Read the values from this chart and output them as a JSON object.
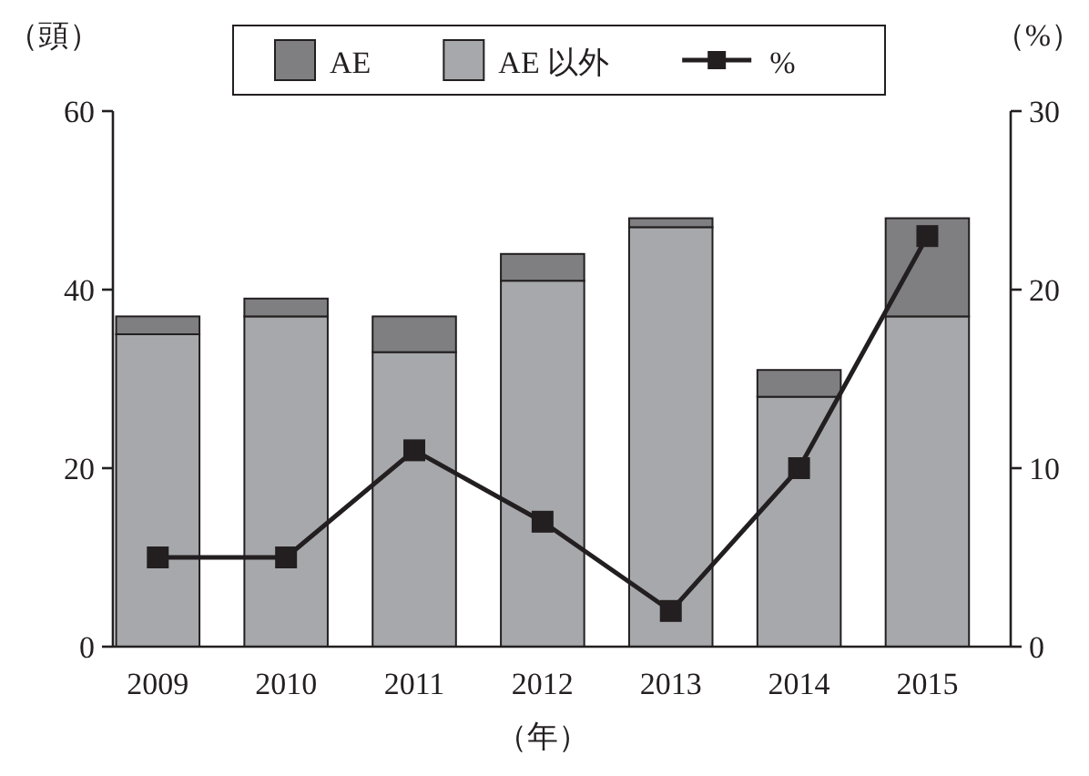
{
  "chart_data": {
    "type": "bar",
    "stacked": true,
    "categories": [
      "2009",
      "2010",
      "2011",
      "2012",
      "2013",
      "2014",
      "2015"
    ],
    "xlabel": "（年）",
    "ylabel": "（頭）",
    "y2label": "（%）",
    "ylim": [
      0,
      60
    ],
    "yticks": [
      0,
      20,
      40,
      60
    ],
    "y2lim": [
      0,
      30
    ],
    "y2ticks": [
      0,
      10,
      20,
      30
    ],
    "legend": "top",
    "grid": false,
    "series": [
      {
        "name": "AE 以外",
        "color": "#a7a8ab",
        "values": [
          35,
          37,
          33,
          41,
          47,
          28,
          37
        ]
      },
      {
        "name": "AE",
        "color": "#7f7f82",
        "values": [
          2,
          2,
          4,
          3,
          1,
          3,
          11
        ]
      },
      {
        "name": "%",
        "type": "line",
        "axis": "y2",
        "color": "#231f20",
        "marker": "square",
        "line_style": "solid",
        "values": [
          5,
          5,
          11,
          7,
          2,
          10,
          23
        ]
      }
    ]
  }
}
